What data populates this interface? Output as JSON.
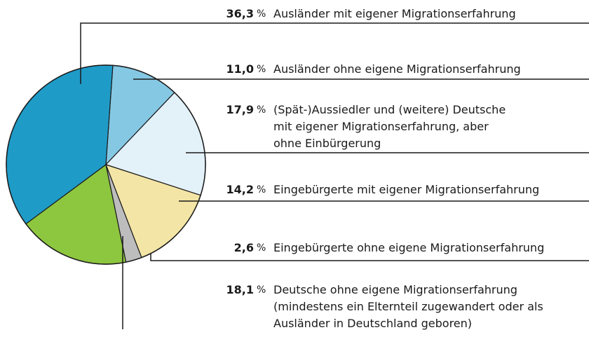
{
  "chart_data": {
    "type": "pie",
    "categories": [
      "Ausländer mit eigener Migrationserfahrung",
      "Ausländer ohne eigene Migrationserfahrung",
      "(Spät-)Aussiedler und (weitere) Deutsche\nmit eigener Migrationserfahrung, aber\nohne Einbürgerung",
      "Eingebürgerte mit eigener Migrationserfahrung",
      "Eingebürgerte ohne eigene Migrationserfahrung",
      "Deutsche ohne eigene Migrationserfahrung\n(mindestens ein Elternteil zugewandert oder als\nAusländer in Deutschland geboren)"
    ],
    "values": [
      36.3,
      11.0,
      17.9,
      14.2,
      2.6,
      18.1
    ],
    "value_labels": [
      "36,3",
      "11,0",
      "17,9",
      "14,2",
      "2,6",
      "18,1"
    ],
    "unit": "%",
    "colors": [
      "#1f9bc8",
      "#85c8e4",
      "#e3f1f9",
      "#f3e5a5",
      "#bdbdbd",
      "#8dc63f"
    ]
  }
}
